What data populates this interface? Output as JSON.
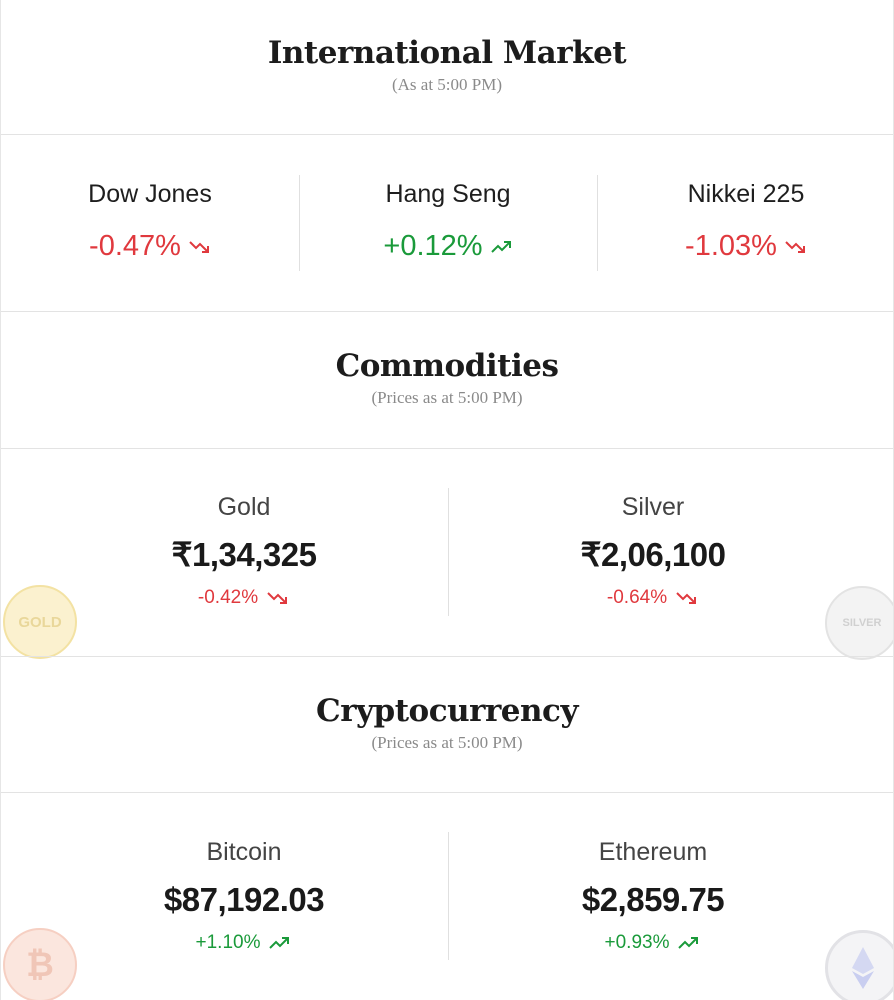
{
  "international": {
    "title": "International Market",
    "subtitle": "(As at 5:00 PM)",
    "indices": [
      {
        "name": "Dow Jones",
        "change": "-0.47%",
        "direction": "down"
      },
      {
        "name": "Hang Seng",
        "change": "+0.12%",
        "direction": "up"
      },
      {
        "name": "Nikkei 225",
        "change": "-1.03%",
        "direction": "down"
      }
    ]
  },
  "commodities": {
    "title": "Commodities",
    "subtitle": "(Prices as at 5:00 PM)",
    "items": [
      {
        "name": "Gold",
        "price": "₹1,34,325",
        "change": "-0.42%",
        "direction": "down",
        "badge": "GOLD"
      },
      {
        "name": "Silver",
        "price": "₹2,06,100",
        "change": "-0.64%",
        "direction": "down",
        "badge": "SILVER"
      }
    ]
  },
  "crypto": {
    "title": "Cryptocurrency",
    "subtitle": "(Prices as at 5:00 PM)",
    "items": [
      {
        "name": "Bitcoin",
        "price": "$87,192.03",
        "change": "+1.10%",
        "direction": "up",
        "badge": "₿"
      },
      {
        "name": "Ethereum",
        "price": "$2,859.75",
        "change": "+0.93%",
        "direction": "up"
      }
    ]
  },
  "colors": {
    "negative": "#e0393e",
    "positive": "#1a9a3a"
  },
  "icons": {
    "down": "trend-down-icon",
    "up": "trend-up-icon"
  }
}
